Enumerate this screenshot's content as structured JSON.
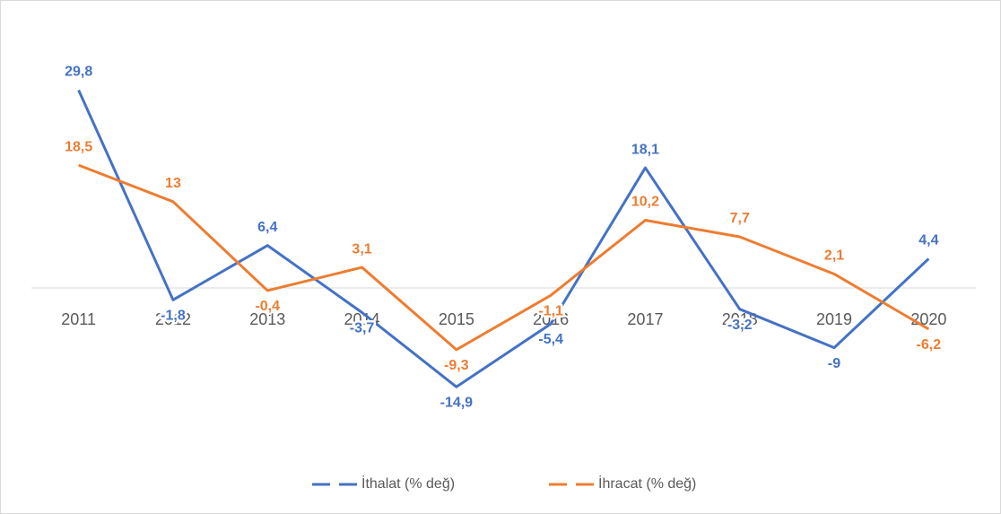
{
  "chart_data": {
    "type": "line",
    "categories": [
      "2011",
      "2012",
      "2013",
      "2014",
      "2015",
      "2016",
      "2017",
      "2018",
      "2019",
      "2020"
    ],
    "series": [
      {
        "name": "İthalat (% değ)",
        "color": "#4472c4",
        "values": [
          29.8,
          -1.8,
          6.4,
          -3.7,
          -14.9,
          -5.4,
          18.1,
          -3.2,
          -9,
          4.4
        ],
        "value_labels": [
          "29,8",
          "-1,8",
          "6,4",
          "-3,7",
          "-14,9",
          "-5,4",
          "18,1",
          "-3,2",
          "-9",
          "4,4"
        ]
      },
      {
        "name": "İhracat (% değ)",
        "color": "#ed7d31",
        "values": [
          18.5,
          13,
          -0.4,
          3.1,
          -9.3,
          -1.1,
          10.2,
          7.7,
          2.1,
          -6.2
        ],
        "value_labels": [
          "18,5",
          "13",
          "-0,4",
          "3,1",
          "-9,3",
          "-1,1",
          "10,2",
          "7,7",
          "2,1",
          "-6,2"
        ]
      }
    ],
    "ylim": [
      -20,
      35
    ],
    "legend": "bottom"
  }
}
